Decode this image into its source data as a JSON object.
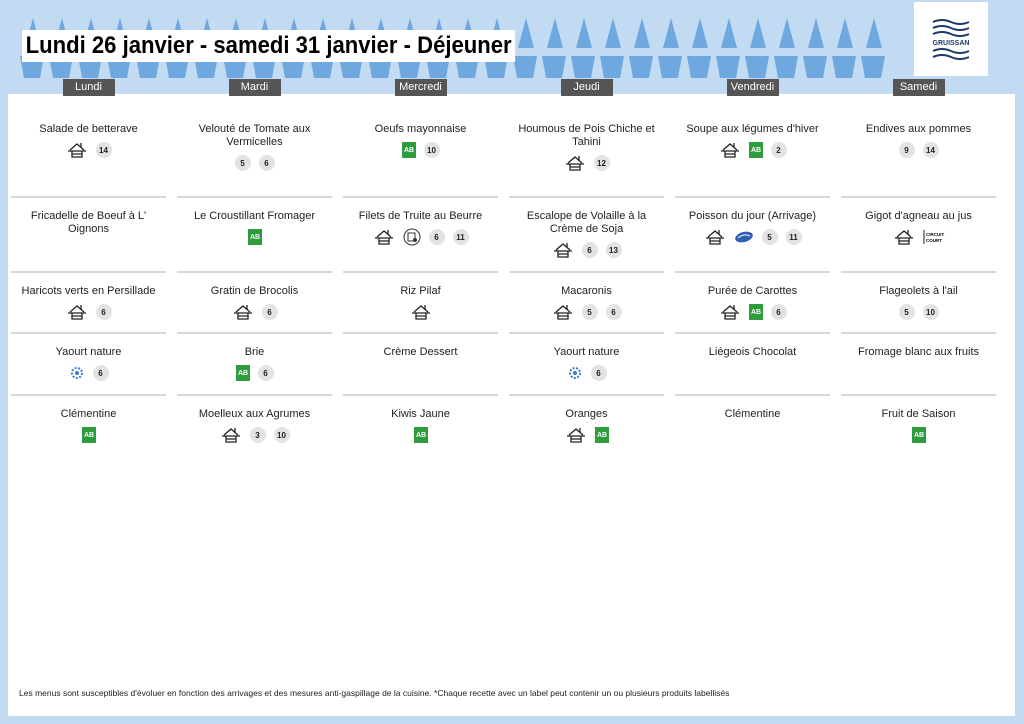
{
  "header": {
    "title": "Lundi 26 janvier - samedi 31 janvier  - Déjeuner",
    "logo_text": "GRUISSAN"
  },
  "colors": {
    "background": "#c3dbf2",
    "decor": "#6fa7df",
    "day_header": "#555555",
    "bio": "#2e9c3c",
    "badge": "#e3e3e3"
  },
  "days": [
    {
      "label": "Lundi",
      "dishes": [
        {
          "name": "Salade de betterave",
          "icons": [
            "fait-maison"
          ],
          "allergens": [
            "14"
          ]
        },
        {
          "name": "Fricadelle de Boeuf à L' Oignons",
          "icons": [],
          "allergens": []
        },
        {
          "name": "Haricots verts en Persillade",
          "icons": [
            "fait-maison"
          ],
          "allergens": [
            "6"
          ]
        },
        {
          "name": "Yaourt nature",
          "icons": [
            "ecolabel"
          ],
          "allergens": [
            "6"
          ]
        },
        {
          "name": "Clémentine",
          "icons": [
            "bio"
          ],
          "allergens": []
        }
      ]
    },
    {
      "label": "Mardi",
      "dishes": [
        {
          "name": "Velouté de Tomate aux Vermicelles",
          "icons": [],
          "allergens": [
            "5",
            "6"
          ]
        },
        {
          "name": "Le Croustillant Fromager",
          "icons": [
            "bio"
          ],
          "allergens": []
        },
        {
          "name": "Gratin de Brocolis",
          "icons": [
            "fait-maison"
          ],
          "allergens": [
            "6"
          ]
        },
        {
          "name": "Brie",
          "icons": [
            "bio"
          ],
          "allergens": [
            "6"
          ]
        },
        {
          "name": "Moelleux aux Agrumes",
          "icons": [
            "fait-maison"
          ],
          "allergens": [
            "3",
            "10"
          ]
        }
      ]
    },
    {
      "label": "Mercredi",
      "dishes": [
        {
          "name": "Oeufs mayonnaise",
          "icons": [
            "bio"
          ],
          "allergens": [
            "10"
          ]
        },
        {
          "name": "Filets de Truite au Beurre",
          "icons": [
            "fait-maison",
            "peche-durable"
          ],
          "allergens": [
            "6",
            "11"
          ]
        },
        {
          "name": "Riz Pilaf",
          "icons": [
            "fait-maison"
          ],
          "allergens": []
        },
        {
          "name": "Crème Dessert",
          "icons": [],
          "allergens": []
        },
        {
          "name": "Kiwis Jaune",
          "icons": [
            "bio"
          ],
          "allergens": []
        }
      ]
    },
    {
      "label": "Jeudi",
      "dishes": [
        {
          "name": "Houmous de Pois Chiche et Tahini",
          "icons": [
            "fait-maison"
          ],
          "allergens": [
            "12"
          ]
        },
        {
          "name": "Escalope de Volaille à la Crème de Soja",
          "icons": [
            "fait-maison"
          ],
          "allergens": [
            "6",
            "13"
          ]
        },
        {
          "name": "Macaronis",
          "icons": [
            "fait-maison"
          ],
          "allergens": [
            "5",
            "6"
          ]
        },
        {
          "name": "Yaourt nature",
          "icons": [
            "ecolabel"
          ],
          "allergens": [
            "6"
          ]
        },
        {
          "name": "Oranges",
          "icons": [
            "fait-maison",
            "bio"
          ],
          "allergens": []
        }
      ]
    },
    {
      "label": "Vendredi",
      "dishes": [
        {
          "name": "Soupe aux légumes d'hiver",
          "icons": [
            "fait-maison",
            "bio"
          ],
          "allergens": [
            "2"
          ]
        },
        {
          "name": "Poisson du jour (Arrivage)",
          "icons": [
            "fait-maison",
            "poisson"
          ],
          "allergens": [
            "5",
            "11"
          ]
        },
        {
          "name": "Purée de Carottes",
          "icons": [
            "fait-maison",
            "bio"
          ],
          "allergens": [
            "6"
          ]
        },
        {
          "name": "Liégeois Chocolat",
          "icons": [],
          "allergens": []
        },
        {
          "name": "Clémentine",
          "icons": [],
          "allergens": []
        }
      ]
    },
    {
      "label": "Samedi",
      "dishes": [
        {
          "name": "Endives aux pommes",
          "icons": [],
          "allergens": [
            "9",
            "14"
          ]
        },
        {
          "name": "Gigot d'agneau au jus",
          "icons": [
            "fait-maison",
            "circuit-court"
          ],
          "allergens": []
        },
        {
          "name": "Flageolets à l'ail",
          "icons": [],
          "allergens": [
            "5",
            "10"
          ]
        },
        {
          "name": "Fromage blanc aux fruits",
          "icons": [],
          "allergens": []
        },
        {
          "name": "Fruit de Saison",
          "icons": [
            "bio"
          ],
          "allergens": []
        }
      ]
    }
  ],
  "circuit_court_text": "CIRCUIT COURT",
  "footer": "Les menus sont susceptibles d'évoluer en fonction des arrivages et des mesures anti-gaspillage de la cuisine. *Chaque recette avec un label peut contenir un ou plusieurs produits labellisés"
}
